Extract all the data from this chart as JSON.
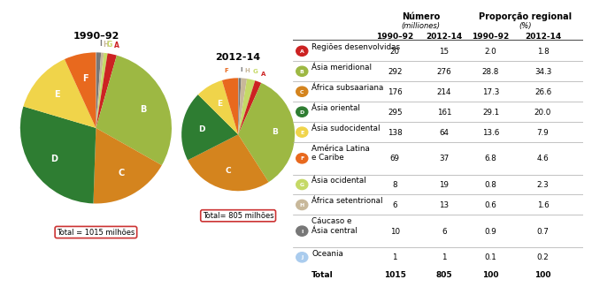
{
  "pie1_title": "1990–92",
  "pie2_title": "2012-14",
  "total1_label": "Total = 1015 milhões",
  "total2_label": "Total= 805 milhões",
  "labels": [
    "A",
    "B",
    "C",
    "D",
    "E",
    "F",
    "G",
    "H",
    "I",
    "J"
  ],
  "values1": [
    20,
    292,
    176,
    295,
    138,
    69,
    8,
    6,
    10,
    1
  ],
  "values2": [
    15,
    276,
    214,
    161,
    64,
    37,
    19,
    13,
    6,
    1
  ],
  "colors": [
    "#cc2222",
    "#9db843",
    "#d4841e",
    "#2e7d32",
    "#f0d44a",
    "#e8691e",
    "#c5d966",
    "#c8b89a",
    "#777777",
    "#aaccee"
  ],
  "col_headers": [
    "1990–92",
    "2012-14",
    "1990–92",
    "2012-14"
  ],
  "row_labels": [
    "Regiões desenvolvidas",
    "Ásia meridional",
    "África subsaariana",
    "Ásia oriental",
    "Ásia sudocidental",
    "América Latina\ne Caribe",
    "Ásia ocidental",
    "África setentrional",
    "Cáucaso e\nÁsia central",
    "Oceania"
  ],
  "row_letter": [
    "A",
    "B",
    "C",
    "D",
    "E",
    "F",
    "G",
    "H",
    "I",
    "J"
  ],
  "num1": [
    20,
    292,
    176,
    295,
    138,
    69,
    8,
    6,
    10,
    1
  ],
  "num2": [
    15,
    276,
    214,
    161,
    64,
    37,
    19,
    13,
    6,
    1
  ],
  "prop1": [
    "2.0",
    "28.8",
    "17.3",
    "29.1",
    "13.6",
    "6.8",
    "0.8",
    "0.6",
    "0.9",
    "0.1"
  ],
  "prop2": [
    "1.8",
    "34.3",
    "26.6",
    "20.0",
    "7.9",
    "4.6",
    "2.3",
    "1.6",
    "0.7",
    "0.2"
  ],
  "background_color": "#ffffff"
}
